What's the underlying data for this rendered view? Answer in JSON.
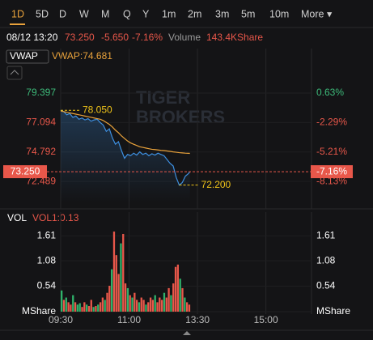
{
  "tabs": [
    "1D",
    "5D",
    "D",
    "W",
    "M",
    "Q",
    "Y",
    "1m",
    "2m",
    "3m",
    "5m",
    "10m",
    "More ▾"
  ],
  "header": {
    "datetime": "08/12 13:20",
    "price": "73.250",
    "change": "-5.650",
    "change_pct": "-7.16%",
    "volume_label": "Volume",
    "volume": "143.4KShare"
  },
  "chart_data": [
    {
      "type": "line",
      "indicator": "VWAP",
      "indicator_value": "VWAP:74.681",
      "x": [
        0,
        4,
        8,
        12,
        16,
        20,
        24,
        28,
        32,
        36,
        40,
        44,
        48,
        52,
        56,
        60,
        64,
        68,
        72,
        76,
        80,
        84,
        88,
        92,
        96,
        100,
        104,
        108,
        112,
        116,
        120,
        124,
        128,
        132,
        136,
        140,
        144,
        148,
        152,
        156,
        160,
        164,
        168,
        170
      ],
      "series": [
        {
          "color": "#3d8fe0",
          "values": [
            78.05,
            77.95,
            77.7,
            77.8,
            77.5,
            77.6,
            77.35,
            77.45,
            77.3,
            77.4,
            77.2,
            77.3,
            77.35,
            77.1,
            76.9,
            76.4,
            76.6,
            75.9,
            75.4,
            75.6,
            74.9,
            74.3,
            74.6,
            74.5,
            74.7,
            74.55,
            74.8,
            74.6,
            74.7,
            74.5,
            74.65,
            74.55,
            74.7,
            74.6,
            74.5,
            74.2,
            73.9,
            73.7,
            72.8,
            72.2,
            72.4,
            72.9,
            73.1,
            73.25
          ]
        },
        {
          "color": "#e9a23b",
          "values": [
            78.0,
            77.95,
            77.9,
            77.85,
            77.8,
            77.75,
            77.7,
            77.65,
            77.6,
            77.55,
            77.5,
            77.45,
            77.4,
            77.35,
            77.25,
            77.1,
            76.95,
            76.75,
            76.5,
            76.3,
            76.05,
            75.85,
            75.65,
            75.5,
            75.4,
            75.3,
            75.2,
            75.15,
            75.1,
            75.05,
            75.0,
            74.98,
            74.95,
            74.92,
            74.9,
            74.87,
            74.84,
            74.8,
            74.77,
            74.74,
            74.72,
            74.7,
            74.69,
            74.681
          ]
        }
      ],
      "high": {
        "x": 0,
        "value": 78.05,
        "label": "78.050"
      },
      "low": {
        "x": 156,
        "value": 72.2,
        "label": "72.200"
      },
      "last": {
        "value": 73.25,
        "label": "73.250",
        "pct_label": "-7.16%"
      },
      "xlim": [
        0,
        330
      ],
      "xticks": [
        {
          "value": 0,
          "label": "09:30"
        },
        {
          "value": 90,
          "label": "11:00"
        },
        {
          "value": 180,
          "label": "13:30"
        },
        {
          "value": 270,
          "label": "15:00"
        }
      ],
      "ylim": [
        70.85,
        81.74
      ],
      "yticks": [
        79.397,
        77.094,
        74.792,
        72.489
      ],
      "y2lim": [
        -10.203,
        3.6
      ],
      "y2ticks": [
        {
          "value": 0.63,
          "label": "0.63%"
        },
        {
          "value": -2.29,
          "label": "-2.29%"
        },
        {
          "value": -5.21,
          "label": "-5.21%"
        },
        {
          "value": -8.13,
          "label": "-8.13%"
        }
      ]
    },
    {
      "type": "bar",
      "indicator": "VOL",
      "indicator_value": "VOL1:0.13",
      "x": [
        0,
        3,
        6,
        9,
        12,
        15,
        18,
        21,
        24,
        27,
        30,
        33,
        36,
        39,
        42,
        45,
        48,
        51,
        54,
        57,
        60,
        63,
        66,
        69,
        72,
        75,
        78,
        81,
        84,
        87,
        90,
        93,
        96,
        99,
        102,
        105,
        108,
        111,
        114,
        117,
        120,
        123,
        126,
        129,
        132,
        135,
        138,
        141,
        144,
        147,
        150,
        153,
        156,
        159,
        162,
        165,
        168
      ],
      "values": [
        0.45,
        0.25,
        0.3,
        0.2,
        0.15,
        0.35,
        0.2,
        0.15,
        0.18,
        0.1,
        0.2,
        0.15,
        0.12,
        0.25,
        0.1,
        0.12,
        0.15,
        0.2,
        0.3,
        0.25,
        0.4,
        0.55,
        0.9,
        1.7,
        1.2,
        0.8,
        1.45,
        1.65,
        0.6,
        0.5,
        0.35,
        0.3,
        0.4,
        0.25,
        0.2,
        0.3,
        0.25,
        0.15,
        0.2,
        0.3,
        0.25,
        0.35,
        0.2,
        0.3,
        0.25,
        0.4,
        0.3,
        0.5,
        0.35,
        0.6,
        0.95,
        1.0,
        0.7,
        0.5,
        0.3,
        0.2,
        0.15
      ],
      "colors": [
        "#2fb36b",
        "#e8574a",
        "#2fb36b",
        "#e8574a",
        "#e8574a",
        "#2fb36b",
        "#e8574a",
        "#2fb36b",
        "#2fb36b",
        "#e8574a",
        "#e8574a",
        "#2fb36b",
        "#e8574a",
        "#e8574a",
        "#2fb36b",
        "#e8574a",
        "#2fb36b",
        "#e8574a",
        "#e8574a",
        "#2fb36b",
        "#e8574a",
        "#e8574a",
        "#2fb36b",
        "#e8574a",
        "#e8574a",
        "#e8574a",
        "#2fb36b",
        "#e8574a",
        "#e8574a",
        "#2fb36b",
        "#e8574a",
        "#2fb36b",
        "#e8574a",
        "#e8574a",
        "#2fb36b",
        "#e8574a",
        "#e8574a",
        "#2fb36b",
        "#e8574a",
        "#e8574a",
        "#e8574a",
        "#2fb36b",
        "#e8574a",
        "#e8574a",
        "#e8574a",
        "#2fb36b",
        "#e8574a",
        "#e8574a",
        "#2fb36b",
        "#e8574a",
        "#e8574a",
        "#e8574a",
        "#2fb36b",
        "#e8574a",
        "#2fb36b",
        "#e8574a",
        "#e8574a"
      ],
      "xlim": [
        0,
        330
      ],
      "ylim": [
        0,
        1.77
      ],
      "yticks": [
        1.61,
        1.08,
        0.54,
        {
          "value": 0,
          "label": "MShare"
        }
      ]
    }
  ]
}
